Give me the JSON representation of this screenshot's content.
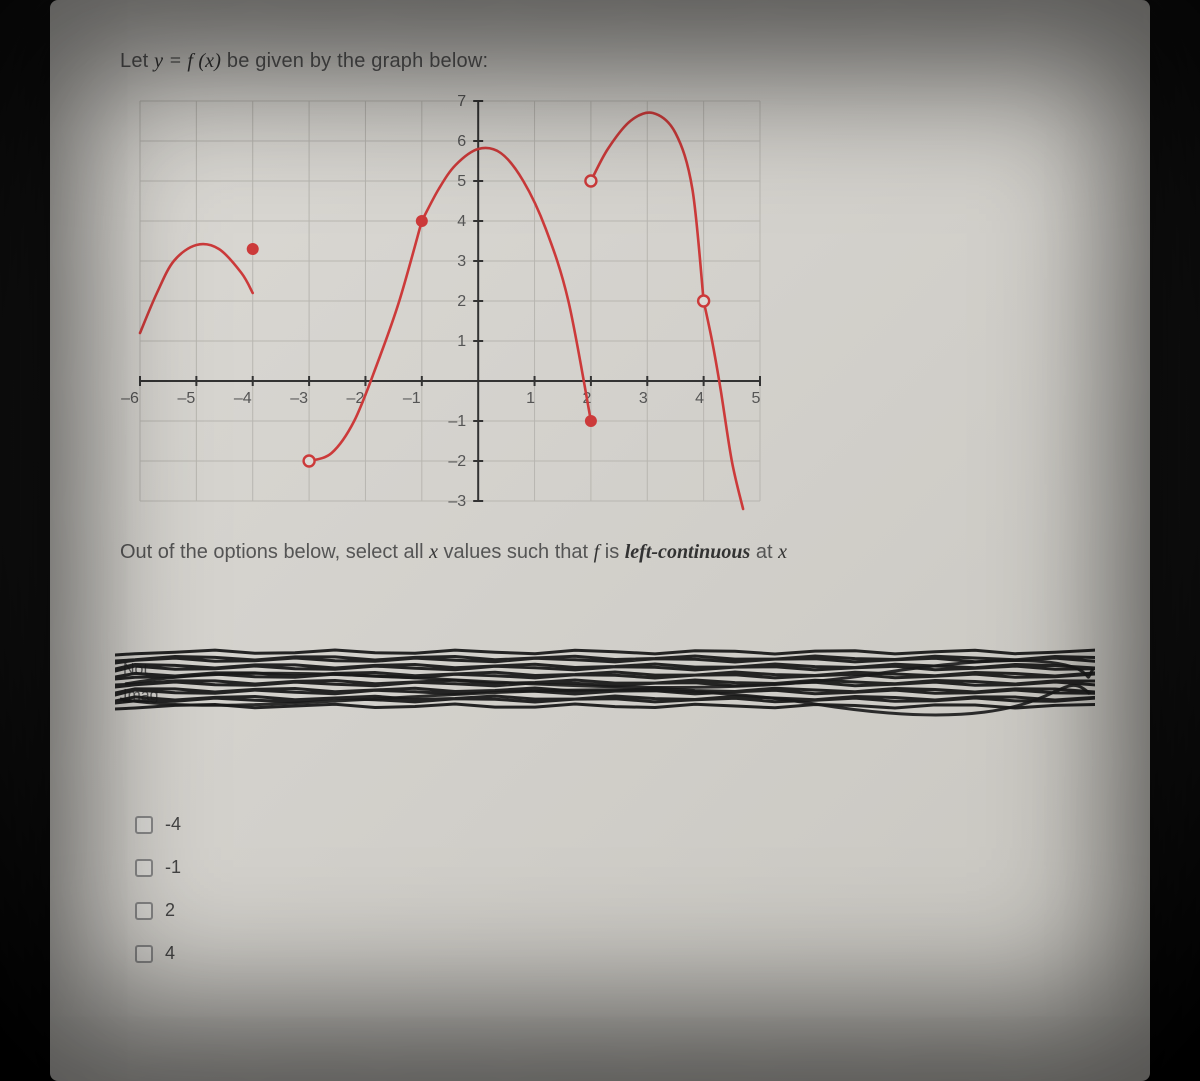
{
  "question": {
    "prefix": "Let ",
    "equation_lhs": "y = ",
    "equation_rhs": "f (x)",
    "suffix": " be given by the graph below:"
  },
  "instruction": {
    "prefix": "Out of the options below, select all ",
    "var1": "x",
    "mid": " values such that ",
    "fn": "f",
    "mid2": " is ",
    "emph": "left-continuous",
    "suffix": " at ",
    "var2": "x"
  },
  "options": [
    {
      "label": "-4"
    },
    {
      "label": "-1"
    },
    {
      "label": "2"
    },
    {
      "label": "4"
    }
  ],
  "scribble_fragments": [
    "Not",
    "Imag"
  ],
  "graph": {
    "xmin": -6,
    "xmax": 5,
    "ymin": -3,
    "ymax": 7,
    "xticks": [
      -6,
      -5,
      -4,
      -3,
      -2,
      -1,
      1,
      2,
      3,
      4,
      5
    ],
    "yticks": [
      -3,
      -2,
      -1,
      1,
      2,
      3,
      4,
      5,
      6,
      7
    ],
    "grid_color": "#b8b6b0",
    "axis_color": "#333333",
    "curve_color": "#cc3a3a",
    "tick_color": "#333333",
    "background": "transparent",
    "pieces": [
      {
        "type": "curve",
        "points": [
          [
            -6,
            1.2
          ],
          [
            -5.7,
            2.2
          ],
          [
            -5.4,
            3.0
          ],
          [
            -5.0,
            3.4
          ],
          [
            -4.6,
            3.3
          ],
          [
            -4.2,
            2.7
          ],
          [
            -4.0,
            2.2
          ]
        ]
      },
      {
        "type": "curve",
        "points": [
          [
            -3.0,
            -2.0
          ],
          [
            -2.6,
            -1.8
          ],
          [
            -2.2,
            -1.0
          ],
          [
            -1.8,
            0.4
          ],
          [
            -1.4,
            2.0
          ],
          [
            -1.0,
            4.0
          ]
        ]
      },
      {
        "type": "curve",
        "points": [
          [
            -1.0,
            4.0
          ],
          [
            -0.7,
            4.8
          ],
          [
            -0.4,
            5.4
          ],
          [
            0.0,
            5.8
          ],
          [
            0.4,
            5.7
          ],
          [
            0.8,
            5.0
          ],
          [
            1.2,
            3.8
          ],
          [
            1.6,
            2.0
          ],
          [
            2.0,
            -1.0
          ]
        ]
      },
      {
        "type": "curve",
        "points": [
          [
            2.0,
            5.0
          ],
          [
            2.3,
            5.8
          ],
          [
            2.7,
            6.5
          ],
          [
            3.1,
            6.7
          ],
          [
            3.5,
            6.2
          ],
          [
            3.8,
            4.8
          ],
          [
            4.0,
            2.0
          ]
        ]
      },
      {
        "type": "curve",
        "points": [
          [
            4.0,
            2.0
          ],
          [
            4.15,
            1.0
          ],
          [
            4.3,
            -0.2
          ],
          [
            4.5,
            -2.0
          ],
          [
            4.7,
            -3.2
          ]
        ]
      }
    ],
    "closed_points": [
      {
        "x": -4,
        "y": 3.3
      },
      {
        "x": -1,
        "y": 4.0
      },
      {
        "x": 2,
        "y": -1.0
      }
    ],
    "open_points": [
      {
        "x": -3,
        "y": -2.0
      },
      {
        "x": 2,
        "y": 5.0
      },
      {
        "x": 4,
        "y": 2.0
      }
    ]
  }
}
